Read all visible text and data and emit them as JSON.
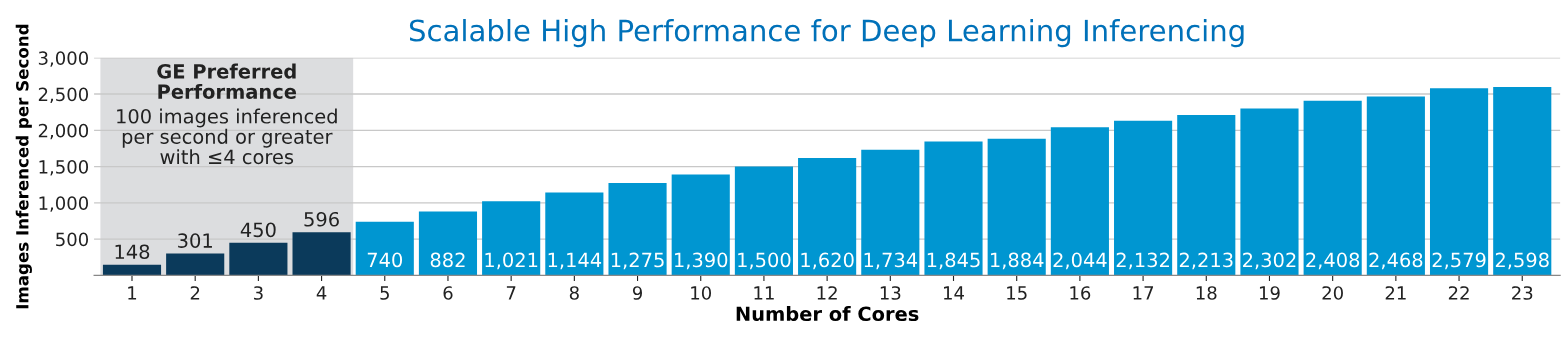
{
  "chart_data": {
    "type": "bar",
    "title": "Scalable High Performance for Deep Learning Inferencing",
    "xlabel": "Number of Cores",
    "ylabel": "Images Inferenced per Second",
    "categories": [
      "1",
      "2",
      "3",
      "4",
      "5",
      "6",
      "7",
      "8",
      "9",
      "10",
      "11",
      "12",
      "13",
      "14",
      "15",
      "16",
      "17",
      "18",
      "19",
      "20",
      "21",
      "22",
      "23"
    ],
    "values": [
      148,
      301,
      450,
      596,
      740,
      882,
      1021,
      1144,
      1275,
      1390,
      1500,
      1620,
      1734,
      1845,
      1884,
      2044,
      2132,
      2213,
      2302,
      2408,
      2468,
      2579,
      2598
    ],
    "value_labels": [
      "148",
      "301",
      "450",
      "596",
      "740",
      "882",
      "1,021",
      "1,144",
      "1,275",
      "1,390",
      "1,500",
      "1,620",
      "1,734",
      "1,845",
      "1,884",
      "2,044",
      "2,132",
      "2,213",
      "2,302",
      "2,408",
      "2,468",
      "2,579",
      "2,598"
    ],
    "colors": [
      "#0b3a5b",
      "#0b3a5b",
      "#0b3a5b",
      "#0b3a5b",
      "#0096d1",
      "#0096d1",
      "#0096d1",
      "#0096d1",
      "#0096d1",
      "#0096d1",
      "#0096d1",
      "#0096d1",
      "#0096d1",
      "#0096d1",
      "#0096d1",
      "#0096d1",
      "#0096d1",
      "#0096d1",
      "#0096d1",
      "#0096d1",
      "#0096d1",
      "#0096d1",
      "#0096d1"
    ],
    "ylim": [
      0,
      3000
    ],
    "yticks": [
      {
        "value": 500,
        "label": "500"
      },
      {
        "value": 1000,
        "label": "1,000"
      },
      {
        "value": 1500,
        "label": "1,500"
      },
      {
        "value": 2000,
        "label": "2,000"
      },
      {
        "value": 2500,
        "label": "2,500"
      },
      {
        "value": 3000,
        "label": "3,000"
      }
    ],
    "grid": "y",
    "bands": [
      {
        "axis": "x",
        "from": "1",
        "to": "4",
        "label": "GE Preferred Performance",
        "color": "#dcdddf"
      }
    ],
    "annotations": [
      "100 images inferenced per second or greater with ≤4 cores"
    ]
  }
}
